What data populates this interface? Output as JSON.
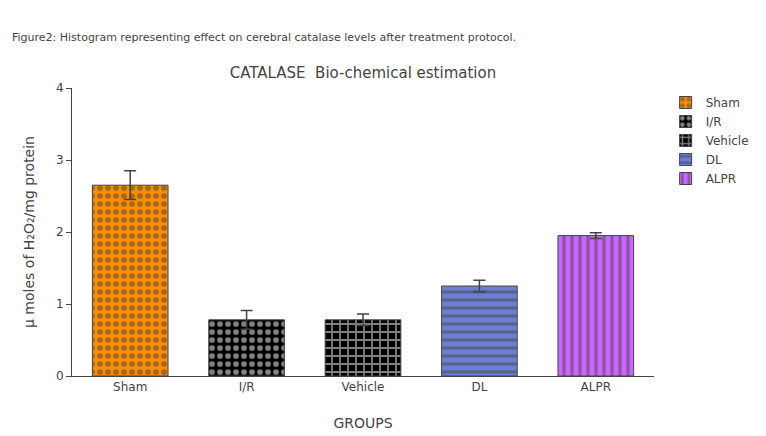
{
  "chart_data": {
    "type": "bar",
    "title": "CATALASE  Bio-chemical estimation",
    "annotations": [
      "Figure2: Histogram representing effect on cerebral catalase levels after treatment protocol."
    ],
    "xlabel": "GROUPS",
    "ylabel": "μ moles of H₂O₂/mg protein",
    "categories": [
      "Sham",
      "I/R",
      "Vehicle",
      "DL",
      "ALPR"
    ],
    "series": [
      {
        "name": "Sham",
        "color": "#FF8C00",
        "marker": "dots",
        "values": [
          2.65,
          null,
          null,
          null,
          null
        ],
        "errors": [
          0.2,
          null,
          null,
          null,
          null
        ]
      },
      {
        "name": "I/R",
        "color": "#000000",
        "marker": "dots",
        "values": [
          null,
          0.78,
          null,
          null,
          null
        ],
        "errors": [
          null,
          0.13,
          null,
          null,
          null
        ]
      },
      {
        "name": "Vehicle",
        "color": "#000000",
        "marker": "cross",
        "values": [
          null,
          null,
          0.78,
          null,
          null
        ],
        "errors": [
          null,
          null,
          0.08,
          null,
          null
        ]
      },
      {
        "name": "DL",
        "color": "#6B7FD4",
        "marker": "horizontal",
        "values": [
          null,
          null,
          null,
          1.25,
          null
        ],
        "errors": [
          null,
          null,
          null,
          0.08,
          null
        ]
      },
      {
        "name": "ALPR",
        "color": "#CC66FF",
        "marker": "vertical",
        "values": [
          null,
          null,
          null,
          null,
          1.95
        ],
        "errors": [
          null,
          null,
          null,
          null,
          0.04
        ]
      }
    ],
    "ylim": [
      0,
      4
    ],
    "yticks": [
      0,
      1,
      2,
      3,
      4
    ],
    "grid": false,
    "legend": "right"
  }
}
